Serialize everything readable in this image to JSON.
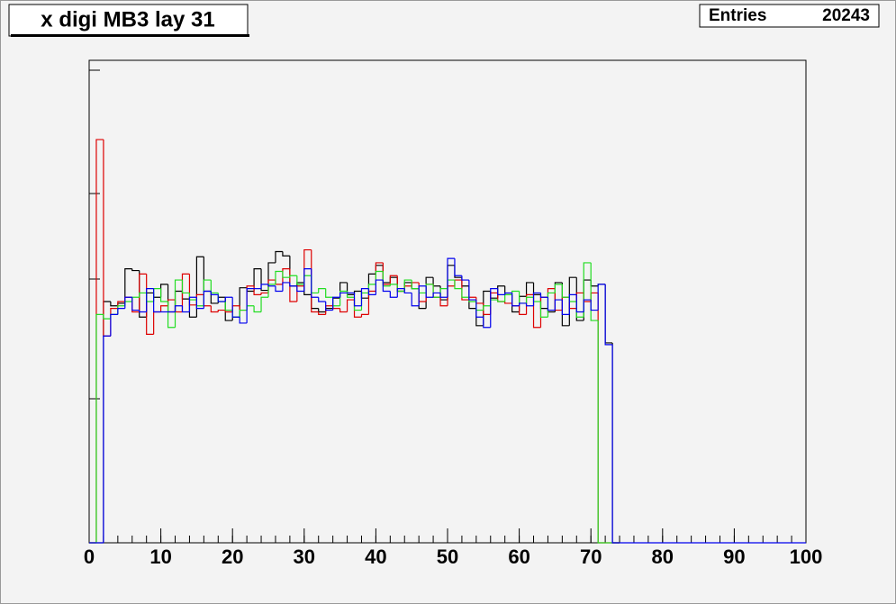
{
  "chart_data": {
    "type": "histogram",
    "title": "x digi MB3 lay 31",
    "stats": {
      "label": "Entries",
      "value": 20243
    },
    "bins": [
      0,
      1,
      2,
      3,
      4,
      5,
      6,
      7,
      8,
      9,
      10,
      11,
      12,
      13,
      14,
      15,
      16,
      17,
      18,
      19,
      20,
      21,
      22,
      23,
      24,
      25,
      26,
      27,
      28,
      29,
      30,
      31,
      32,
      33,
      34,
      35,
      36,
      37,
      38,
      39,
      40,
      41,
      42,
      43,
      44,
      45,
      46,
      47,
      48,
      49,
      50,
      51,
      52,
      53,
      54,
      55,
      56,
      57,
      58,
      59,
      60,
      61,
      62,
      63,
      64,
      65,
      66,
      67,
      68,
      69,
      70,
      71,
      72,
      73,
      74
    ],
    "xlim": [
      0,
      100
    ],
    "xticks": [
      0,
      10,
      20,
      30,
      40,
      50,
      60,
      70,
      80,
      90,
      100
    ],
    "ylim": [
      0,
      560
    ],
    "series": [
      {
        "color": "#000000",
        "values": [
          0,
          0,
          280,
          275,
          278,
          318,
          316,
          262,
          290,
          285,
          300,
          268,
          292,
          283,
          262,
          332,
          292,
          278,
          285,
          258,
          262,
          296,
          292,
          318,
          293,
          325,
          338,
          333,
          298,
          302,
          288,
          272,
          268,
          272,
          284,
          302,
          288,
          292,
          284,
          312,
          322,
          302,
          308,
          292,
          302,
          295,
          272,
          308,
          298,
          282,
          322,
          308,
          298,
          272,
          252,
          292,
          284,
          298,
          288,
          268,
          286,
          302,
          288,
          272,
          268,
          302,
          252,
          308,
          258,
          305,
          298,
          300,
          232,
          0
        ]
      },
      {
        "color": "#dd0000",
        "values": [
          0,
          468,
          240,
          272,
          280,
          285,
          268,
          312,
          242,
          268,
          275,
          282,
          268,
          312,
          276,
          288,
          275,
          268,
          270,
          268,
          275,
          270,
          298,
          288,
          290,
          305,
          300,
          318,
          280,
          298,
          340,
          268,
          265,
          275,
          272,
          268,
          282,
          262,
          265,
          292,
          325,
          300,
          310,
          292,
          298,
          302,
          280,
          300,
          285,
          275,
          298,
          305,
          282,
          285,
          278,
          265,
          290,
          280,
          278,
          275,
          265,
          288,
          250,
          285,
          295,
          270,
          285,
          272,
          290,
          280,
          290,
          0,
          0,
          0
        ]
      },
      {
        "color": "#22dd22",
        "values": [
          0,
          265,
          260,
          265,
          275,
          280,
          285,
          290,
          280,
          295,
          280,
          250,
          305,
          290,
          282,
          275,
          305,
          290,
          280,
          270,
          262,
          270,
          275,
          268,
          285,
          300,
          315,
          308,
          310,
          300,
          310,
          290,
          295,
          285,
          275,
          292,
          285,
          270,
          290,
          300,
          315,
          298,
          300,
          292,
          305,
          295,
          290,
          300,
          285,
          295,
          305,
          295,
          285,
          280,
          270,
          275,
          282,
          280,
          288,
          292,
          278,
          285,
          280,
          262,
          290,
          300,
          285,
          280,
          262,
          325,
          258,
          0,
          0,
          0
        ]
      },
      {
        "color": "#0000ee",
        "values": [
          0,
          0,
          240,
          265,
          272,
          285,
          270,
          268,
          295,
          268,
          268,
          268,
          275,
          268,
          285,
          272,
          292,
          288,
          280,
          285,
          262,
          255,
          295,
          295,
          300,
          298,
          292,
          302,
          298,
          292,
          318,
          285,
          280,
          270,
          285,
          290,
          290,
          275,
          295,
          288,
          305,
          292,
          285,
          295,
          290,
          275,
          298,
          285,
          290,
          285,
          330,
          310,
          305,
          282,
          262,
          250,
          295,
          288,
          290,
          275,
          278,
          275,
          290,
          285,
          270,
          282,
          265,
          288,
          268,
          282,
          270,
          300,
          230,
          0
        ]
      }
    ]
  }
}
